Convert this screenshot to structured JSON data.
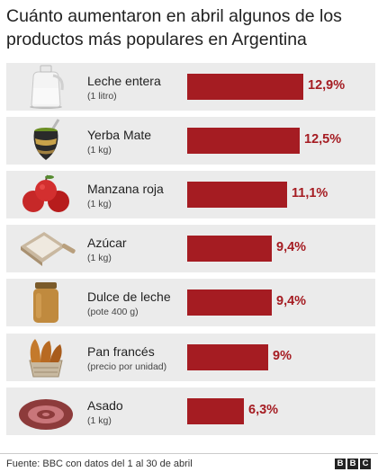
{
  "title": "Cuánto aumentaron en abril algunos de los productos más populares en Argentina",
  "source": "Fuente: BBC con datos del 1 al 30 de abril",
  "logo": "BBC",
  "colors": {
    "bar": "#a51c22",
    "row_bg": "#ebebeb"
  },
  "chart_data": {
    "type": "bar",
    "orientation": "horizontal",
    "title": "Cuánto aumentaron en abril algunos de los productos más populares en Argentina",
    "categories": [
      "Leche entera",
      "Yerba Mate",
      "Manzana roja",
      "Azúcar",
      "Dulce de leche",
      "Pan francés",
      "Asado"
    ],
    "subcategories": [
      "(1 litro)",
      "(1 kg)",
      "(1 kg)",
      "(1 kg)",
      "(pote 400 g)",
      "(precio por unidad)",
      "(1 kg)"
    ],
    "values": [
      12.9,
      12.5,
      11.1,
      9.4,
      9.4,
      9.0,
      6.3
    ],
    "value_labels": [
      "12,9%",
      "12,5%",
      "11,1%",
      "9,4%",
      "9,4%",
      "9%",
      "6,3%"
    ],
    "icons": [
      "milk-jug-icon",
      "mate-cup-icon",
      "red-apples-icon",
      "sugar-scoop-icon",
      "dulce-de-leche-jar-icon",
      "bread-basket-icon",
      "asado-sausage-icon"
    ],
    "xlim": [
      0,
      14
    ]
  }
}
